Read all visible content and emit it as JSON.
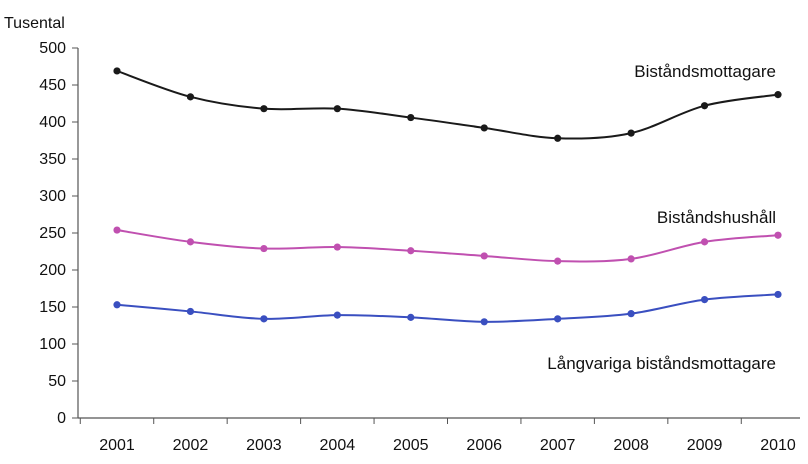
{
  "chart_data": {
    "type": "line",
    "ylabel": "Tusental",
    "ylim": [
      0,
      500
    ],
    "yticks": [
      0,
      50,
      100,
      150,
      200,
      250,
      300,
      350,
      400,
      450,
      500
    ],
    "x": [
      "2001",
      "2002",
      "2003",
      "2004",
      "2005",
      "2006",
      "2007",
      "2008",
      "2009",
      "2010"
    ],
    "grid": false,
    "series": [
      {
        "name": "Biståndsmottagare",
        "color": "#1a1a1a",
        "values": [
          469,
          434,
          418,
          418,
          406,
          392,
          378,
          385,
          422,
          437
        ]
      },
      {
        "name": "Biståndshushåll",
        "color": "#c050b0",
        "values": [
          254,
          238,
          229,
          231,
          226,
          219,
          212,
          215,
          238,
          247
        ]
      },
      {
        "name": "Långvariga biståndsmottagare",
        "color": "#3a4fc0",
        "values": [
          153,
          144,
          134,
          139,
          136,
          130,
          134,
          141,
          160,
          167
        ]
      }
    ]
  }
}
